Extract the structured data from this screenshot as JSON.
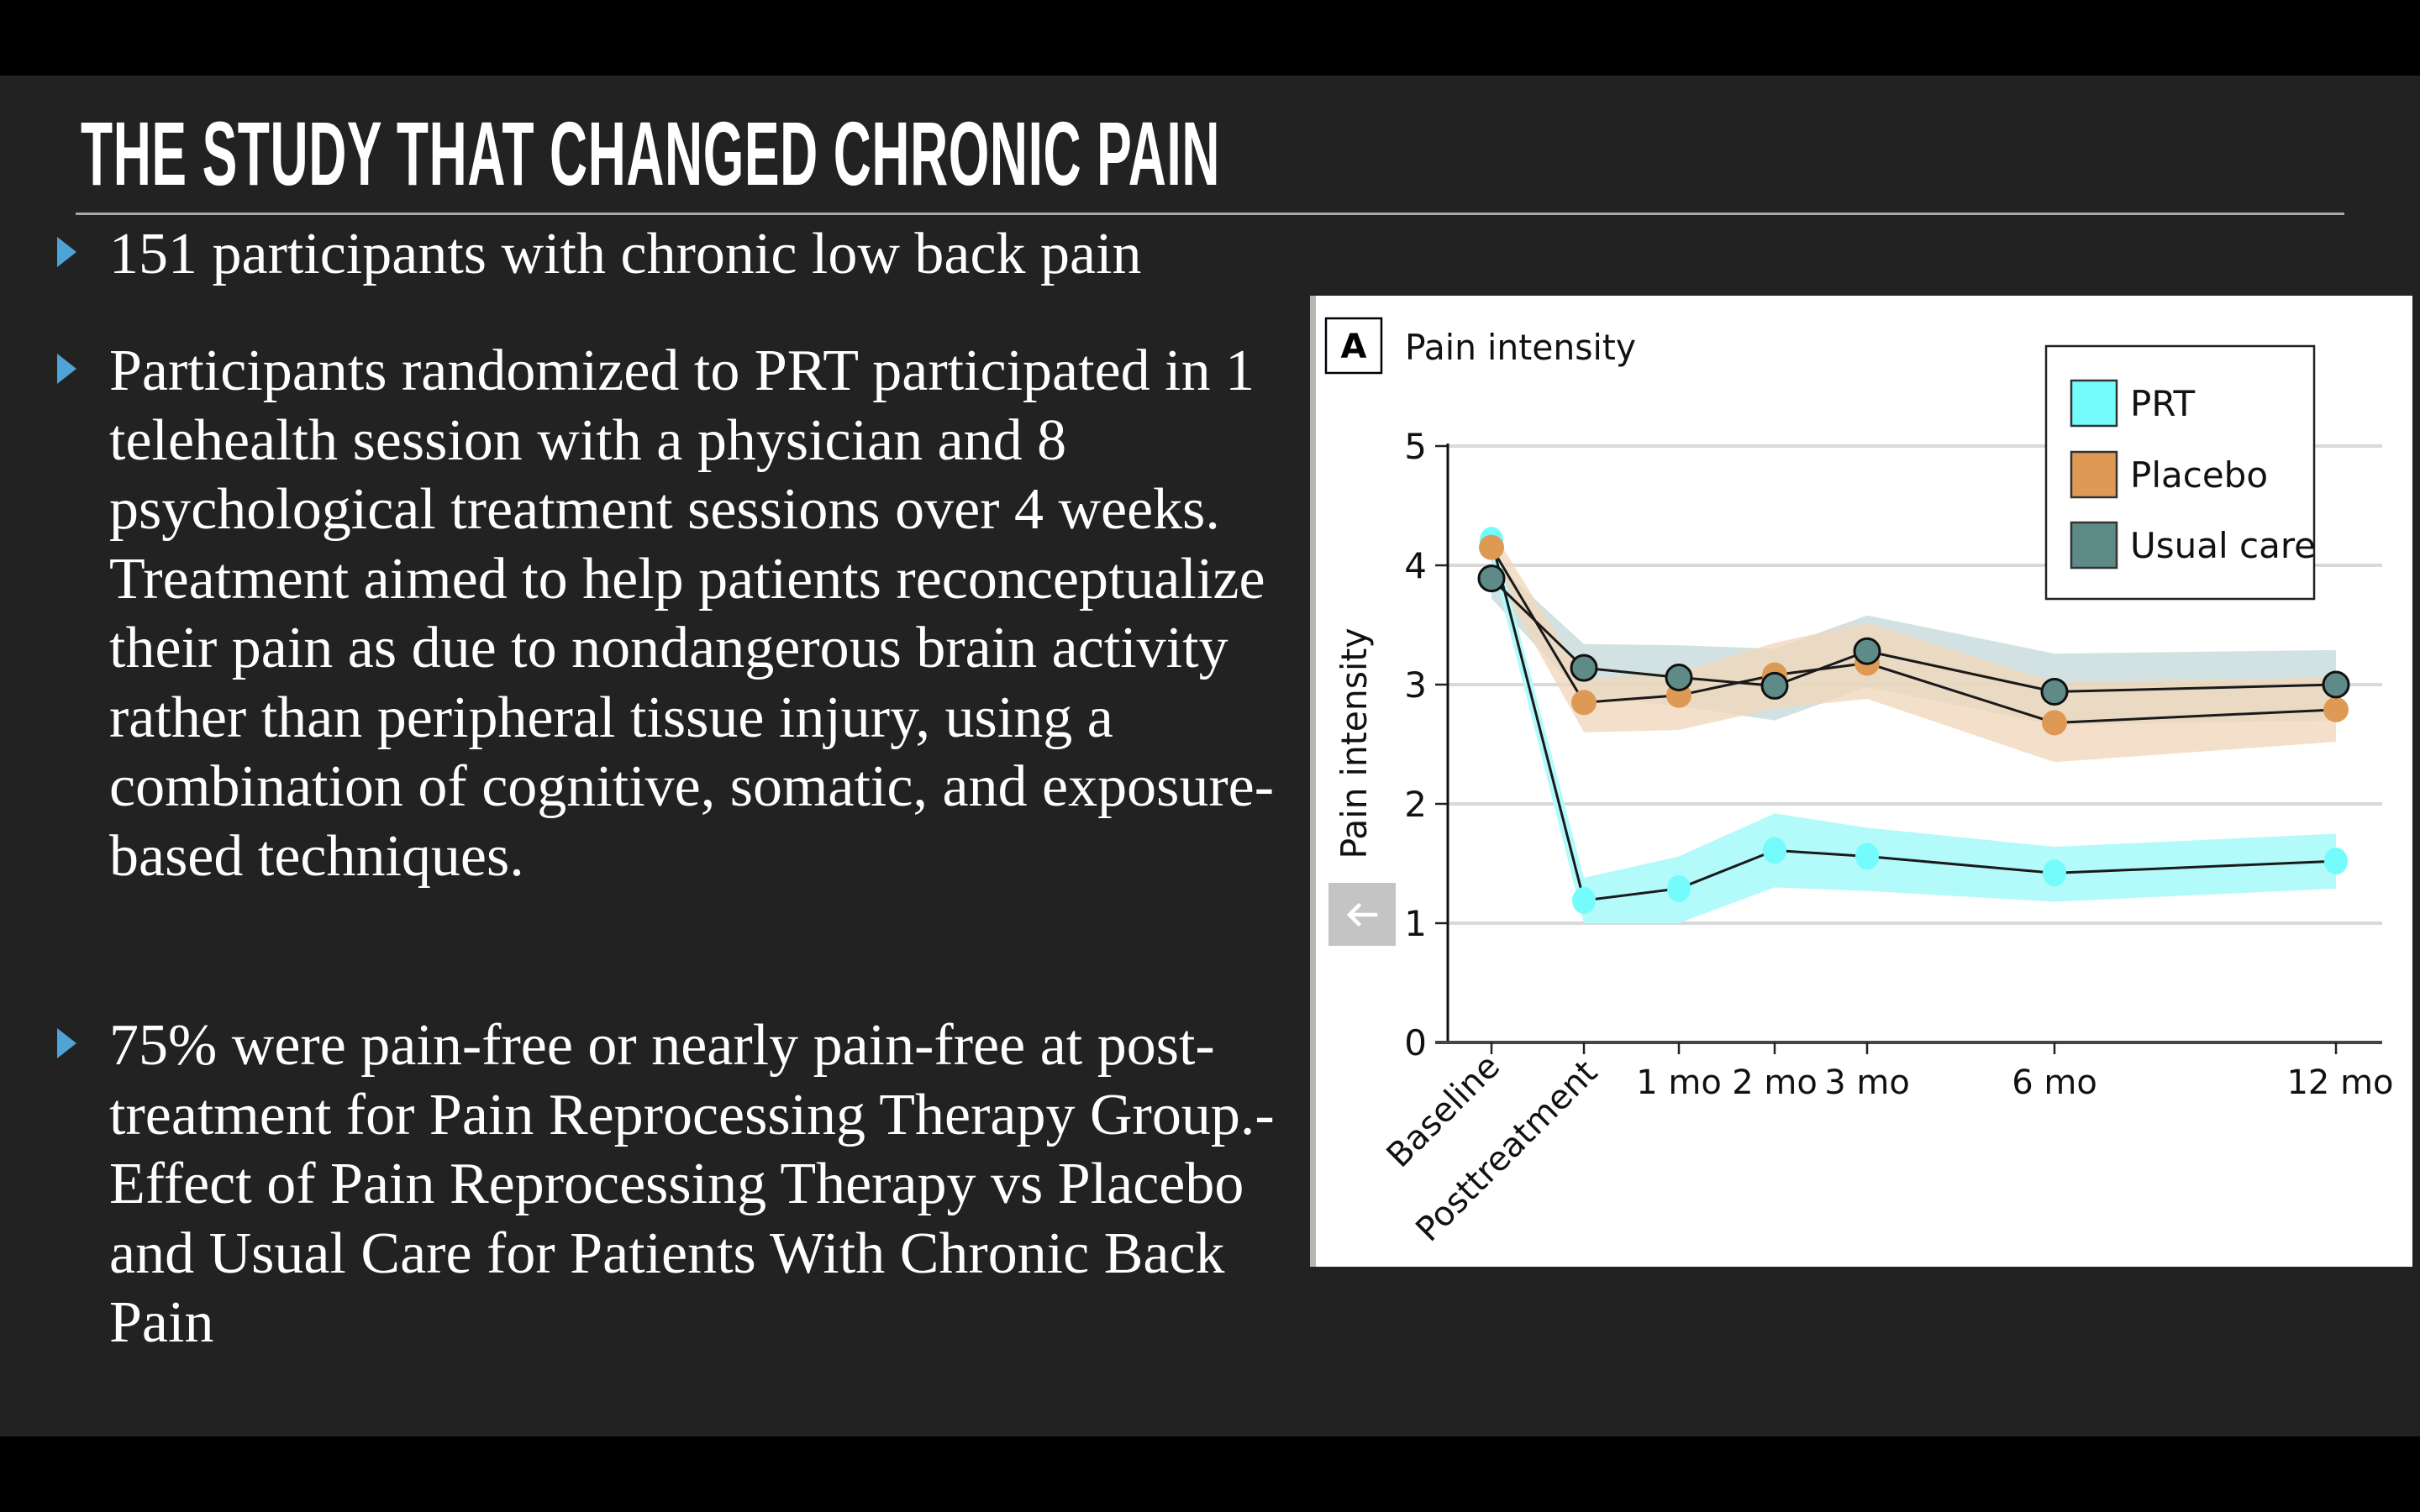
{
  "slide": {
    "title": "THE STUDY THAT CHANGED CHRONIC PAIN",
    "bullets": [
      {
        "text": "151 participants with chronic low back pain"
      },
      {
        "text": "Participants randomized to PRT participated in 1 telehealth session with a physician and 8 psychological treatment sessions over 4 weeks. Treatment aimed to help patients reconceptualize their pain as due to nondangerous brain activity rather than peripheral tissue injury, using a combination of cognitive, somatic, and exposure-based techniques."
      },
      {
        "text": "75% were pain-free or nearly pain-free at post-treatment for Pain Reprocessing Therapy Group.-Effect of Pain Reprocessing Therapy vs Placebo and Usual Care for Patients With Chronic Back Pain"
      }
    ],
    "bullet_icon": "triangle-right-icon",
    "colors": {
      "background": "#222222",
      "bullet": "#4ea3d7",
      "text": "#ffffff",
      "divider": "#a8a8a8"
    }
  },
  "overlay": {
    "back_button_icon": "arrow-left-icon"
  },
  "chart_data": {
    "type": "line",
    "panel_label": "A",
    "title": "Pain intensity",
    "xlabel": "",
    "ylabel": "Pain intensity",
    "ylim": [
      0,
      5
    ],
    "yticks": [
      0,
      1,
      2,
      3,
      4,
      5
    ],
    "grid": true,
    "legend_position": "top-right",
    "categories": [
      "Baseline",
      "Posttreatment",
      "1 mo",
      "2 mo",
      "3 mo",
      "6 mo",
      "12 mo"
    ],
    "x_months": [
      -1,
      0,
      1,
      2,
      3,
      6,
      12
    ],
    "series": [
      {
        "name": "PRT",
        "color": "#74fbfb",
        "band_color": "#b3fafa",
        "values": [
          4.21,
          1.19,
          1.29,
          1.61,
          1.56,
          1.42,
          1.52
        ],
        "ci_upper": [
          4.32,
          1.38,
          1.56,
          1.92,
          1.8,
          1.64,
          1.75
        ],
        "ci_lower": [
          4.05,
          1.0,
          1.0,
          1.3,
          1.27,
          1.18,
          1.29
        ]
      },
      {
        "name": "Placebo",
        "color": "#de9a54",
        "band_color": "#f1d7bb",
        "values": [
          4.15,
          2.85,
          2.91,
          3.08,
          3.18,
          2.68,
          2.79
        ],
        "ci_upper": [
          4.3,
          3.05,
          3.1,
          3.35,
          3.52,
          3.02,
          3.06
        ],
        "ci_lower": [
          3.98,
          2.6,
          2.62,
          2.8,
          2.88,
          2.35,
          2.52
        ]
      },
      {
        "name": "Usual care",
        "color": "#5e8a87",
        "band_color": "#c5d9d9",
        "values": [
          3.89,
          3.14,
          3.06,
          2.99,
          3.28,
          2.94,
          3.0
        ],
        "ci_upper": [
          4.05,
          3.34,
          3.33,
          3.3,
          3.58,
          3.26,
          3.29
        ],
        "ci_lower": [
          3.72,
          2.9,
          2.82,
          2.7,
          2.98,
          2.66,
          2.7
        ]
      }
    ]
  }
}
